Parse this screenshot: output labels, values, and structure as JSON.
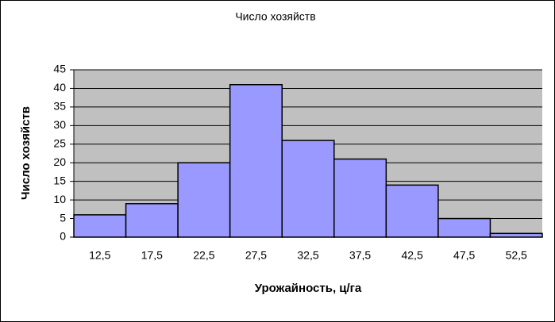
{
  "chart_data": {
    "type": "bar",
    "title": "Число хозяйств",
    "x_label": "Урожайность, ц/га",
    "y_label": "Число хозяйств",
    "categories": [
      "12,5",
      "17,5",
      "22,5",
      "27,5",
      "32,5",
      "37,5",
      "42,5",
      "47,5",
      "52,5"
    ],
    "values": [
      6,
      9,
      20,
      41,
      26,
      21,
      14,
      5,
      1
    ],
    "color": "#9999ff",
    "plot_background": "#c0c0c0",
    "ylim": [
      0,
      45
    ],
    "yticks": [
      0,
      5,
      10,
      15,
      20,
      25,
      30,
      35,
      40,
      45
    ],
    "grid": true
  }
}
